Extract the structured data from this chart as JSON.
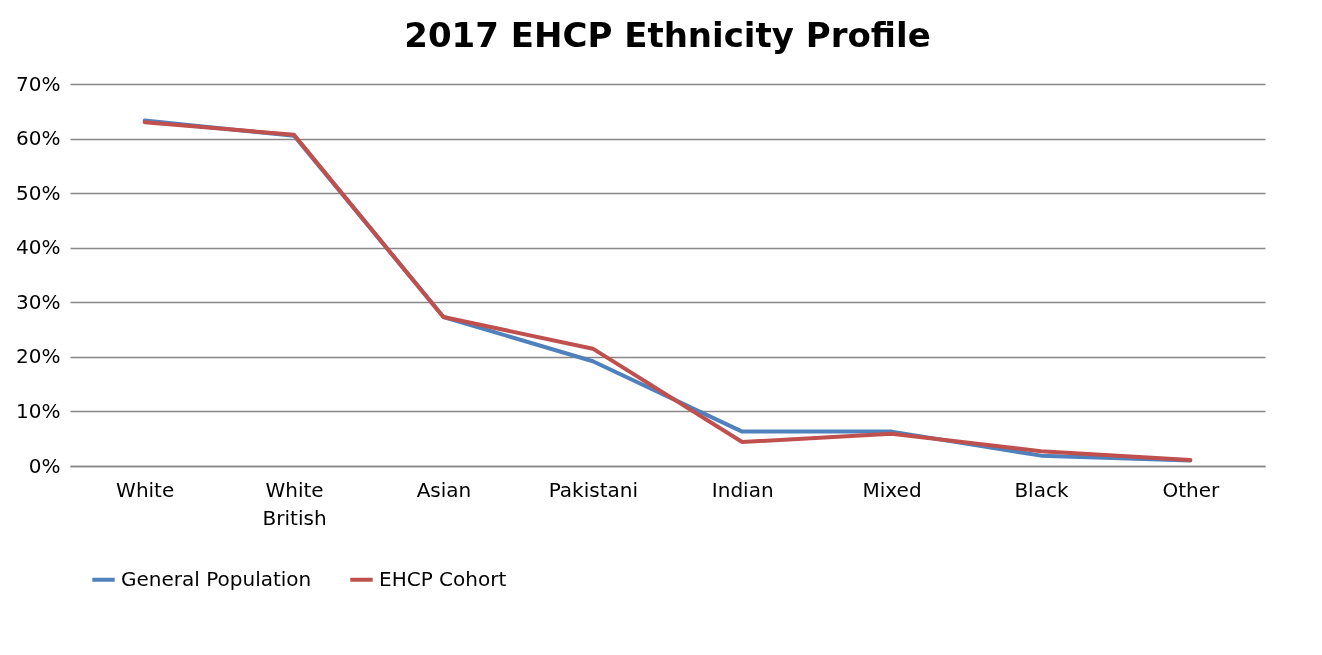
{
  "chart_data": {
    "type": "line",
    "title": "2017 EHCP Ethnicity Profile",
    "categories": [
      "White",
      "White British",
      "Asian",
      "Pakistani",
      "Indian",
      "Mixed",
      "Black",
      "Other"
    ],
    "series": [
      {
        "name": "General Population",
        "color": "#4f81bd",
        "values": [
          63.3,
          60.5,
          27.3,
          19.2,
          6.3,
          6.3,
          1.9,
          1.0
        ]
      },
      {
        "name": "EHCP Cohort",
        "color": "#c0504d",
        "values": [
          63.0,
          60.7,
          27.3,
          21.5,
          4.4,
          5.9,
          2.7,
          1.1
        ]
      }
    ],
    "ylim": [
      0,
      70
    ],
    "yticks": [
      {
        "value": 0,
        "label": "0%"
      },
      {
        "value": 10,
        "label": "10%"
      },
      {
        "value": 20,
        "label": "20%"
      },
      {
        "value": 30,
        "label": "30%"
      },
      {
        "value": 40,
        "label": "40%"
      },
      {
        "value": 50,
        "label": "50%"
      },
      {
        "value": 60,
        "label": "60%"
      },
      {
        "value": 70,
        "label": "70%"
      }
    ],
    "grid": "y",
    "legend": "bottom",
    "marker": "none",
    "line_style": "solid"
  }
}
